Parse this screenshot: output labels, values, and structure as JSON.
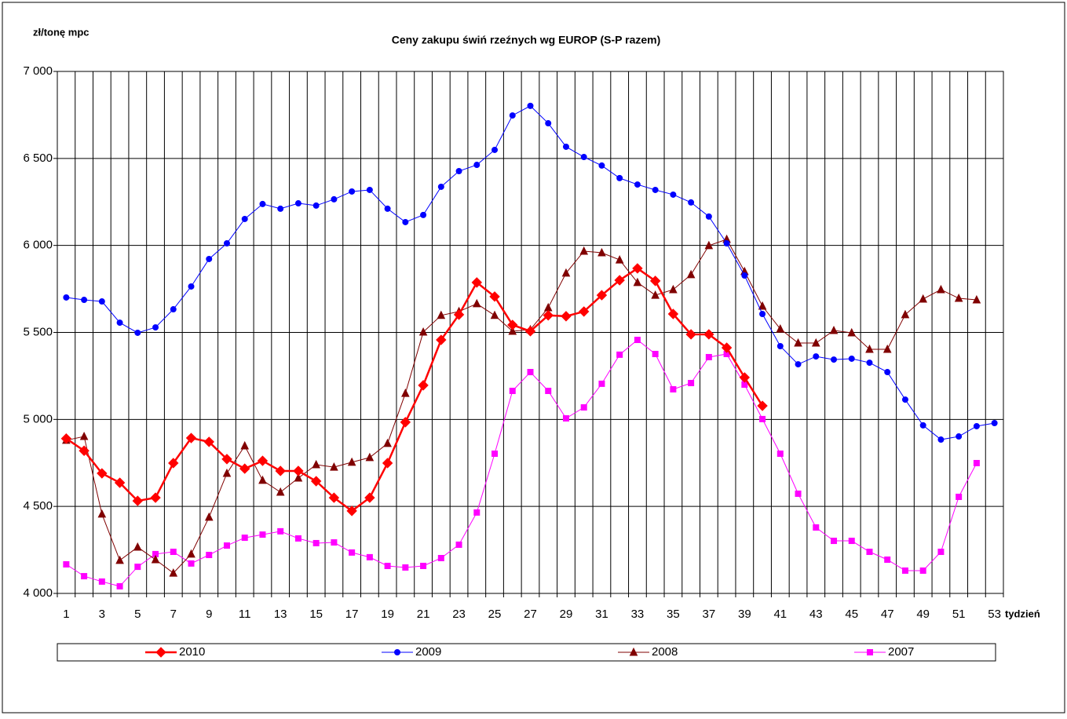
{
  "chart_data": {
    "type": "line",
    "title": "Ceny zakupu świń rzeźnych wg EUROP (S-P razem)",
    "y_label": "zł/tonę mpc",
    "x_label": "tydzień",
    "categories": [
      "1",
      null,
      "3",
      null,
      "5",
      null,
      "7",
      null,
      "9",
      null,
      "11",
      null,
      "13",
      null,
      "15",
      null,
      "17",
      null,
      "19",
      null,
      "21",
      null,
      "23",
      null,
      "25",
      null,
      "27",
      null,
      "29",
      null,
      "31",
      null,
      "33",
      null,
      "35",
      null,
      "37",
      null,
      "39",
      null,
      "41",
      null,
      "43",
      null,
      "45",
      null,
      "47",
      null,
      "49",
      null,
      "51",
      null,
      "53"
    ],
    "ylim": [
      4000,
      7000
    ],
    "yticks": [
      {
        "value": 4000,
        "label": "4 000"
      },
      {
        "value": 4500,
        "label": "4 500"
      },
      {
        "value": 5000,
        "label": "5 000"
      },
      {
        "value": 5500,
        "label": "5 500"
      },
      {
        "value": 6000,
        "label": "6 000"
      },
      {
        "value": 6500,
        "label": "6 500"
      },
      {
        "value": 7000,
        "label": "7 000"
      }
    ],
    "grid": true,
    "legend": "bottom",
    "series": [
      {
        "name": "2010",
        "color": "#ff0000",
        "marker": "diamond",
        "values": [
          4890,
          4820,
          4690,
          4636,
          4532,
          4550,
          4749,
          4893,
          4871,
          4772,
          4717,
          4762,
          4704,
          4704,
          4645,
          4550,
          4474,
          4550,
          4749,
          4984,
          5196,
          5457,
          5602,
          5787,
          5706,
          5543,
          5507,
          5598,
          5593,
          5620,
          5714,
          5800,
          5868,
          5796,
          5606,
          5489,
          5489,
          5412,
          5241,
          5078,
          null,
          null,
          null,
          null,
          null,
          null,
          null,
          null,
          null,
          null,
          null,
          null,
          null
        ]
      },
      {
        "name": "2009",
        "color": "#0000ff",
        "marker": "circle",
        "values": [
          5701,
          5687,
          5678,
          5556,
          5498,
          5529,
          5633,
          5764,
          5922,
          6012,
          6152,
          6238,
          6211,
          6242,
          6229,
          6265,
          6310,
          6319,
          6211,
          6134,
          6175,
          6337,
          6427,
          6463,
          6549,
          6747,
          6802,
          6702,
          6567,
          6508,
          6459,
          6387,
          6350,
          6319,
          6292,
          6247,
          6166,
          6012,
          5827,
          5606,
          5421,
          5317,
          5362,
          5344,
          5349,
          5326,
          5272,
          5114,
          4966,
          4884,
          4902,
          4961,
          4979
        ]
      },
      {
        "name": "2008",
        "color": "#800000",
        "marker": "triangle",
        "values": [
          4880,
          4902,
          4456,
          4190,
          4266,
          4194,
          4117,
          4226,
          4438,
          4690,
          4848,
          4650,
          4582,
          4663,
          4740,
          4726,
          4754,
          4781,
          4862,
          5150,
          5502,
          5598,
          5620,
          5665,
          5598,
          5507,
          5516,
          5642,
          5841,
          5967,
          5958,
          5917,
          5787,
          5714,
          5746,
          5832,
          5999,
          6035,
          5850,
          5651,
          5520,
          5439,
          5439,
          5511,
          5498,
          5403,
          5403,
          5602,
          5692,
          5746,
          5696,
          5687,
          null
        ]
      },
      {
        "name": "2007",
        "color": "#ff00ff",
        "marker": "square",
        "values": [
          4167,
          4099,
          4068,
          4041,
          4153,
          4226,
          4239,
          4172,
          4221,
          4275,
          4320,
          4338,
          4357,
          4316,
          4289,
          4293,
          4235,
          4208,
          4158,
          4149,
          4158,
          4203,
          4280,
          4465,
          4803,
          5164,
          5272,
          5164,
          5006,
          5069,
          5205,
          5372,
          5457,
          5376,
          5173,
          5209,
          5358,
          5376,
          5200,
          5002,
          4803,
          4573,
          4379,
          4302,
          4302,
          4239,
          4194,
          4131,
          4131,
          4239,
          4555,
          4749,
          null
        ]
      }
    ]
  }
}
